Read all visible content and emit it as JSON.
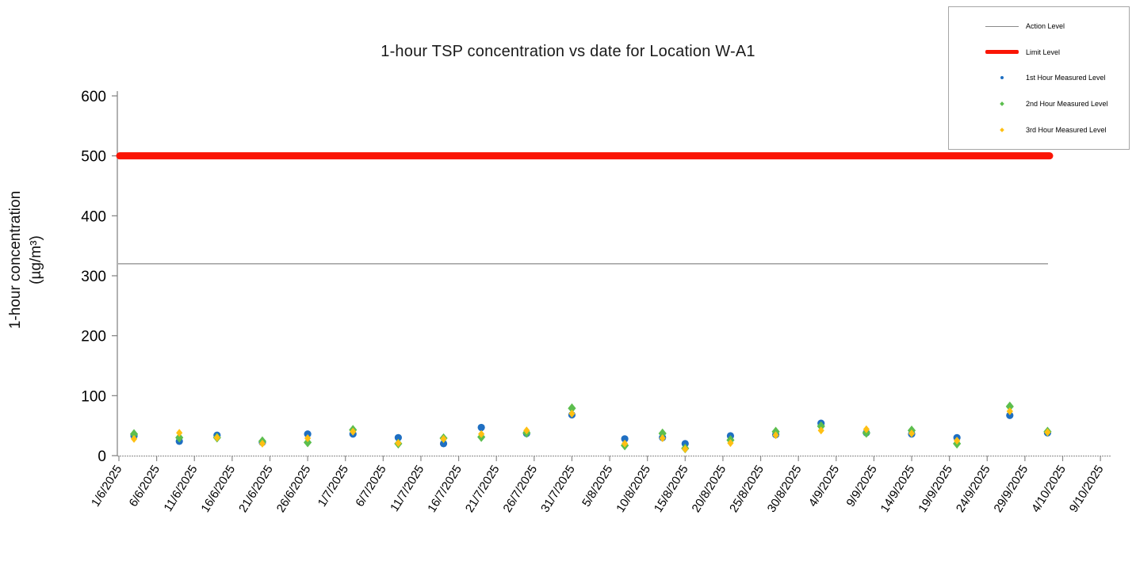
{
  "title": "1-hour TSP concentration vs date for Location W-A1",
  "y_axis": {
    "label_line1": "1-hour concentration",
    "label_line2": "(µg/m³)"
  },
  "legend": {
    "items": [
      {
        "label": "Action Level",
        "type": "line",
        "color": "#8a8a8a"
      },
      {
        "label": "Limit Level",
        "type": "thick-line",
        "color": "#fa1505"
      },
      {
        "label": "1st Hour Measured Level",
        "type": "circle",
        "color": "#1f6fc2"
      },
      {
        "label": "2nd Hour Measured Level",
        "type": "diamond",
        "color": "#5cbe4e"
      },
      {
        "label": "3rd Hour Measured Level",
        "type": "diamond",
        "color": "#ffc013"
      }
    ]
  },
  "chart_data": {
    "type": "scatter",
    "title": "1-hour TSP concentration vs date for Location W-A1",
    "xlabel": "",
    "ylabel": "1-hour concentration (µg/m³)",
    "ylim": [
      0,
      600
    ],
    "y_ticks": [
      0,
      100,
      200,
      300,
      400,
      500,
      600
    ],
    "grid": false,
    "legend_position": "top-right",
    "x_tick_labels": [
      "1/6/2025",
      "6/6/2025",
      "11/6/2025",
      "16/6/2025",
      "21/6/2025",
      "26/6/2025",
      "1/7/2025",
      "6/7/2025",
      "11/7/2025",
      "16/7/2025",
      "21/7/2025",
      "26/7/2025",
      "31/7/2025",
      "5/8/2025",
      "10/8/2025",
      "15/8/2025",
      "20/8/2025",
      "25/8/2025",
      "30/8/2025",
      "4/9/2025",
      "9/9/2025",
      "14/9/2025",
      "19/9/2025",
      "24/9/2025",
      "29/9/2025",
      "4/10/2025",
      "9/10/2025"
    ],
    "action_level": 320,
    "limit_level": 500,
    "action_level_color": "#8a8a8a",
    "limit_level_color": "#fa1505",
    "dates": [
      "3/6/2025",
      "9/6/2025",
      "14/6/2025",
      "20/6/2025",
      "26/6/2025",
      "2/7/2025",
      "8/7/2025",
      "14/7/2025",
      "19/7/2025",
      "25/7/2025",
      "31/7/2025",
      "7/8/2025",
      "12/8/2025",
      "15/8/2025",
      "21/8/2025",
      "27/8/2025",
      "2/9/2025",
      "8/9/2025",
      "14/9/2025",
      "20/9/2025",
      "27/9/2025",
      "2/10/2025"
    ],
    "series": [
      {
        "name": "1st Hour Measured Level",
        "marker": "circle",
        "color": "#1f6fc2",
        "values": [
          33,
          24,
          34,
          22,
          36,
          36,
          30,
          20,
          47,
          37,
          68,
          28,
          30,
          20,
          33,
          35,
          54,
          38,
          36,
          30,
          67,
          38
        ]
      },
      {
        "name": "2nd Hour Measured Level",
        "marker": "diamond",
        "color": "#5cbe4e",
        "values": [
          36,
          30,
          30,
          24,
          22,
          43,
          20,
          29,
          31,
          38,
          79,
          17,
          37,
          12,
          26,
          40,
          49,
          38,
          42,
          20,
          82,
          40
        ]
      },
      {
        "name": "3rd Hour Measured Level",
        "marker": "diamond",
        "color": "#ffc013",
        "values": [
          28,
          38,
          30,
          20,
          29,
          40,
          21,
          28,
          36,
          42,
          70,
          20,
          29,
          11,
          21,
          34,
          42,
          44,
          37,
          25,
          74,
          39
        ]
      }
    ]
  }
}
